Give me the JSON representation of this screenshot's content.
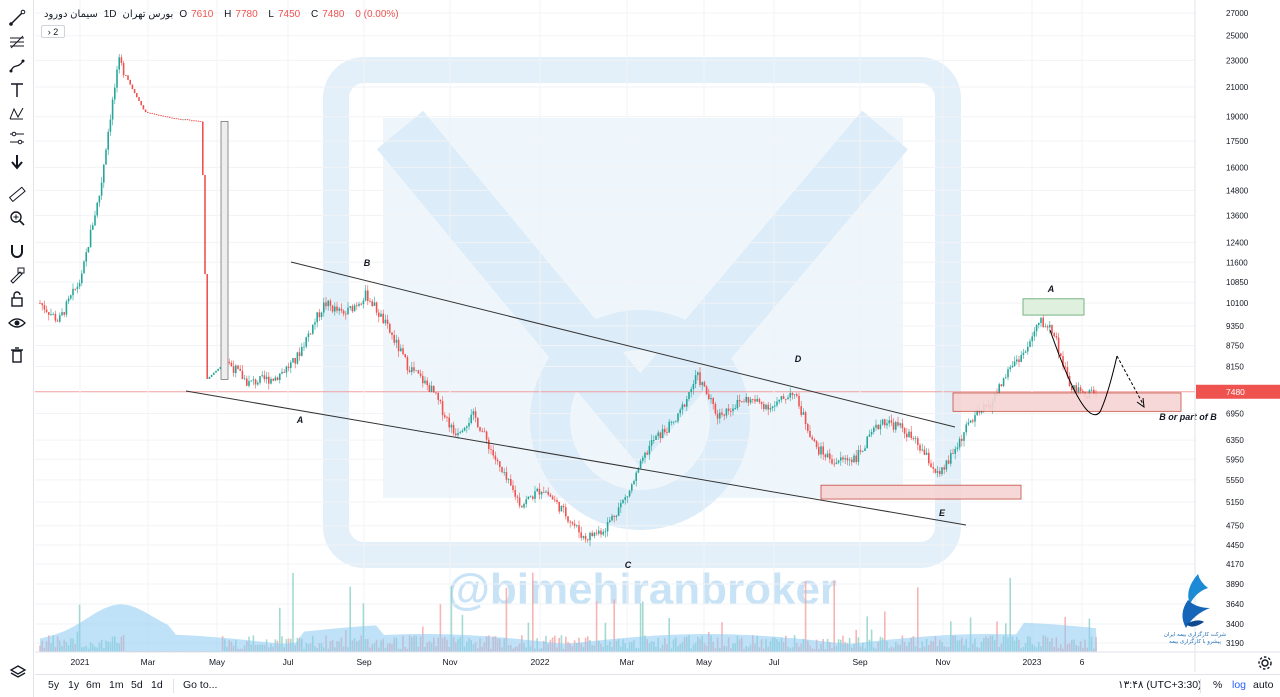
{
  "legend": {
    "symbol": "سیمان دورود",
    "timeframe": "1D",
    "exchange": "بورس تهران",
    "open_label": "O",
    "open": "7610",
    "high_label": "H",
    "high": "7780",
    "low_label": "L",
    "low": "7450",
    "close_label": "C",
    "close": "7480",
    "change": "0 (0.00%)",
    "indicators_toggle": "2"
  },
  "toolbar": {
    "icons": [
      "trend-line-icon",
      "fib-icon",
      "brush-icon",
      "text-icon",
      "pattern-icon",
      "measure-tool-icon",
      "arrow-down-icon",
      "ruler-icon",
      "zoom-in-icon",
      "magnet-icon",
      "lock-draw-icon",
      "lock-icon",
      "eye-icon",
      "trash-icon"
    ]
  },
  "bottom": {
    "ranges": [
      "5y",
      "1y",
      "6m",
      "1m",
      "5d",
      "1d"
    ],
    "goto": "Go to...",
    "time": "۱۳:۴۸ (UTC+3:30)",
    "percent": "%",
    "log": "log",
    "auto": "auto"
  },
  "colors": {
    "up": "#26a69a",
    "down": "#ef5350",
    "up_soft": "#8fd1c8",
    "down_soft": "#f5a3a3",
    "volume": "#8ccbf3",
    "line": "#333333",
    "zone_red": "#f7d4d4",
    "zone_green": "#dff0df",
    "price_line": "#f0a0a0",
    "watermark": "#c9e3f6"
  },
  "watermark": "@bimehiranbroker",
  "logo_text": [
    "شرکت کارگزاری بیمه ایران",
    "پیشرو با کارگزاری بیمه"
  ],
  "chart_data": {
    "type": "candlestick",
    "scale": "log",
    "price_axis": [
      27000,
      25000,
      23000,
      21000,
      19000,
      17500,
      16000,
      14800,
      13600,
      12400,
      11600,
      10850,
      10100,
      9350,
      8750,
      8150,
      7480,
      6950,
      6350,
      5950,
      5550,
      5150,
      4750,
      4450,
      4170,
      3890,
      3640,
      3400,
      3190
    ],
    "last_price": 7480,
    "time_axis": [
      "2021",
      "Mar",
      "May",
      "Jul",
      "Sep",
      "Nov",
      "2022",
      "Mar",
      "May",
      "Jul",
      "Sep",
      "Nov",
      "2023",
      "6"
    ],
    "price_path": [
      [
        "2021-01-01",
        10100
      ],
      [
        "2021-01-15",
        9500
      ],
      [
        "2021-02-01",
        11000
      ],
      [
        "2021-02-15",
        14800
      ],
      [
        "2021-03-01",
        22900
      ],
      [
        "2021-03-10",
        21000
      ],
      [
        "2021-03-20",
        19300
      ],
      [
        "2021-04-10",
        18900
      ],
      [
        "2021-05-01",
        18700
      ],
      [
        "2021-05-05",
        7800
      ],
      [
        "2021-05-20",
        8300
      ],
      [
        "2021-06-05",
        7700
      ],
      [
        "2021-06-25",
        7850
      ],
      [
        "2021-07-10",
        8300
      ],
      [
        "2021-08-01",
        10100
      ],
      [
        "2021-08-15",
        9700
      ],
      [
        "2021-09-01",
        10400
      ],
      [
        "2021-09-15",
        9400
      ],
      [
        "2021-10-01",
        8200
      ],
      [
        "2021-10-20",
        7500
      ],
      [
        "2021-11-05",
        6500
      ],
      [
        "2021-11-20",
        6900
      ],
      [
        "2021-12-10",
        5700
      ],
      [
        "2021-12-25",
        5100
      ],
      [
        "2022-01-10",
        5400
      ],
      [
        "2022-01-25",
        5000
      ],
      [
        "2022-02-10",
        4550
      ],
      [
        "2022-02-25",
        4700
      ],
      [
        "2022-03-15",
        5300
      ],
      [
        "2022-04-01",
        6300
      ],
      [
        "2022-04-20",
        6800
      ],
      [
        "2022-05-05",
        7900
      ],
      [
        "2022-05-20",
        6900
      ],
      [
        "2022-06-10",
        7300
      ],
      [
        "2022-07-01",
        7100
      ],
      [
        "2022-07-15",
        7500
      ],
      [
        "2022-08-01",
        6200
      ],
      [
        "2022-08-15",
        5900
      ],
      [
        "2022-09-01",
        6000
      ],
      [
        "2022-09-20",
        6800
      ],
      [
        "2022-10-05",
        6600
      ],
      [
        "2022-10-20",
        6100
      ],
      [
        "2022-11-01",
        5600
      ],
      [
        "2022-11-10",
        6000
      ],
      [
        "2022-11-25",
        6800
      ],
      [
        "2022-12-10",
        7200
      ],
      [
        "2022-12-25",
        8200
      ],
      [
        "2023-01-05",
        8600
      ],
      [
        "2023-01-15",
        9500
      ],
      [
        "2023-01-25",
        9200
      ],
      [
        "2023-02-05",
        7700
      ],
      [
        "2023-02-15",
        7400
      ],
      [
        "2023-02-25",
        7480
      ]
    ],
    "annotations": [
      {
        "label": "B",
        "type": "wave"
      },
      {
        "label": "A",
        "type": "wave"
      },
      {
        "label": "C",
        "type": "wave"
      },
      {
        "label": "D",
        "type": "wave"
      },
      {
        "label": "E",
        "type": "wave"
      },
      {
        "label": "A",
        "type": "wave"
      },
      {
        "label": "B or part of B",
        "type": "projection"
      }
    ],
    "zones": [
      {
        "name": "resistance-zone-green",
        "from_price": 9700,
        "to_price": 10250
      },
      {
        "name": "support-zone-red",
        "from_price": 7000,
        "to_price": 7450
      },
      {
        "name": "lower-zone-red",
        "from_price": 5200,
        "to_price": 5450
      }
    ]
  }
}
